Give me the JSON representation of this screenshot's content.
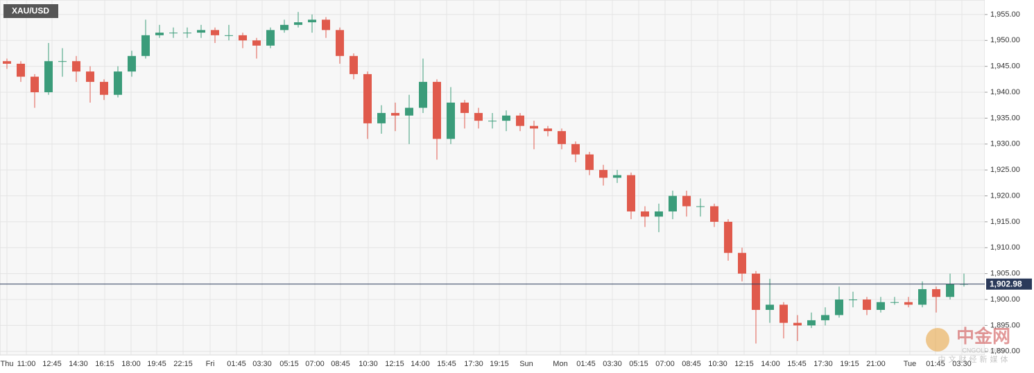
{
  "chart_data": {
    "type": "candlestick",
    "title": "XAU/USD",
    "x": [
      0.5,
      1.5,
      2.5,
      3.5,
      4.5,
      5.5,
      6.5,
      7.5,
      8.5,
      9.5,
      10.5,
      11.5,
      12.5,
      13.5,
      14.5,
      15.5,
      16.5,
      17.5,
      18.5,
      19.5,
      20.5,
      21.5,
      22.5,
      23.5,
      24.5,
      25.5,
      26.5,
      27.5,
      28.5,
      29.5,
      30.5,
      31.5,
      32.5,
      33.5,
      34.5,
      35.5,
      36.5,
      37.5,
      38.5,
      39.5,
      40.5,
      41.5,
      42.5,
      43.5,
      44.5,
      45.5,
      46.5,
      47.5,
      48.5,
      49.5,
      50.5,
      51.5,
      52.5,
      53.5,
      54.5,
      55.5,
      56.5,
      57.5,
      58.5,
      59.5,
      60.5,
      61.5,
      62.5,
      63.5,
      64.5,
      65.5,
      66.5,
      67.5,
      68.5,
      69.5
    ],
    "open": [
      1946,
      1945.5,
      1943,
      1940,
      1946,
      1946,
      1944,
      1942,
      1939.5,
      1944,
      1947,
      1951,
      1951.5,
      1951.5,
      1951.5,
      1952,
      1951,
      1951,
      1950,
      1949,
      1952,
      1953,
      1953.5,
      1954,
      1952,
      1947,
      1943.5,
      1934,
      1936,
      1935.5,
      1937,
      1942,
      1931,
      1938,
      1936,
      1934.5,
      1934.5,
      1935.5,
      1933.5,
      1933,
      1932.5,
      1930,
      1928,
      1925,
      1923.5,
      1924,
      1917,
      1916,
      1917,
      1920,
      1918,
      1918,
      1915,
      1909,
      1905,
      1898,
      1899,
      1895.5,
      1895,
      1896,
      1897,
      1900,
      1900,
      1898,
      1899.5,
      1899.5,
      1899,
      1902,
      1900.5,
      1903
    ],
    "high": [
      1946.5,
      1946,
      1943.5,
      1949.5,
      1948.5,
      1947,
      1945,
      1942.5,
      1945,
      1948,
      1954,
      1953,
      1952.5,
      1952.5,
      1953,
      1952.5,
      1953,
      1951.5,
      1950.5,
      1952.5,
      1954,
      1955.5,
      1955,
      1954.5,
      1952.5,
      1947.5,
      1944,
      1937.5,
      1938,
      1939.5,
      1946.5,
      1942.5,
      1941,
      1938.5,
      1937,
      1936,
      1936.5,
      1936,
      1934.5,
      1933.5,
      1933,
      1930.5,
      1928.5,
      1926,
      1925,
      1924.5,
      1918,
      1918.5,
      1921,
      1921,
      1919.5,
      1918.5,
      1915.5,
      1910,
      1905.5,
      1904,
      1899.5,
      1897,
      1897.5,
      1898.5,
      1902.5,
      1901.5,
      1900.5,
      1900.5,
      1900.5,
      1900.5,
      1903.5,
      1902.5,
      1905,
      1905
    ],
    "low": [
      1944.5,
      1942,
      1937,
      1939.5,
      1943,
      1942,
      1938,
      1938.5,
      1939,
      1943,
      1946.5,
      1950.5,
      1950.5,
      1950.5,
      1950.5,
      1949.5,
      1950,
      1948.5,
      1946.5,
      1948.5,
      1951.5,
      1952.5,
      1951.5,
      1950.5,
      1945.5,
      1942.5,
      1931,
      1932,
      1932.5,
      1930,
      1936,
      1927,
      1930,
      1933,
      1933,
      1933,
      1932.5,
      1932.5,
      1929,
      1931.5,
      1929,
      1926.5,
      1924,
      1922,
      1922.5,
      1915.5,
      1914,
      1913,
      1915.5,
      1916,
      1916,
      1914,
      1907.5,
      1903.5,
      1891.5,
      1895.5,
      1892.5,
      1892,
      1894.5,
      1895,
      1896.5,
      1898.5,
      1897,
      1897.5,
      1899,
      1898.5,
      1898.5,
      1897.5,
      1900,
      1902.5
    ],
    "close": [
      1945.5,
      1943,
      1940,
      1946,
      1946,
      1944,
      1942,
      1939.5,
      1944,
      1947,
      1951,
      1951.5,
      1951.5,
      1951.5,
      1952,
      1951,
      1951,
      1950,
      1949,
      1952,
      1953,
      1953.5,
      1954,
      1952,
      1947,
      1943.5,
      1934,
      1936,
      1935.5,
      1937,
      1942,
      1931,
      1938,
      1936,
      1934.5,
      1934.5,
      1935.5,
      1933.5,
      1933,
      1932.5,
      1930,
      1928,
      1925,
      1923.5,
      1924,
      1917,
      1916,
      1917,
      1920,
      1918,
      1918,
      1915,
      1909,
      1905,
      1898,
      1899,
      1895.5,
      1895,
      1896,
      1897,
      1900,
      1900,
      1898,
      1899.5,
      1899.5,
      1899,
      1902,
      1900.5,
      1903,
      1903
    ],
    "up_color": "#3b9c7a",
    "down_color": "#e05a4c",
    "current_price": {
      "value": 1902.98,
      "label": "1,902.98"
    },
    "xlim": [
      0,
      71
    ],
    "xticks": [
      {
        "value": 0.5,
        "label": "Thu"
      },
      {
        "value": 1.9,
        "label": "11:00"
      },
      {
        "value": 3.75,
        "label": "12:45"
      },
      {
        "value": 5.65,
        "label": "14:30"
      },
      {
        "value": 7.55,
        "label": "16:15"
      },
      {
        "value": 9.45,
        "label": "18:00"
      },
      {
        "value": 11.3,
        "label": "19:45"
      },
      {
        "value": 13.2,
        "label": "22:15"
      },
      {
        "value": 15.15,
        "label": "Fri"
      },
      {
        "value": 17.05,
        "label": "01:45"
      },
      {
        "value": 18.9,
        "label": "03:30"
      },
      {
        "value": 20.85,
        "label": "05:15"
      },
      {
        "value": 22.7,
        "label": "07:00"
      },
      {
        "value": 24.55,
        "label": "08:45"
      },
      {
        "value": 26.55,
        "label": "10:30"
      },
      {
        "value": 28.45,
        "label": "12:15"
      },
      {
        "value": 30.3,
        "label": "14:00"
      },
      {
        "value": 32.2,
        "label": "15:45"
      },
      {
        "value": 34.15,
        "label": "17:30"
      },
      {
        "value": 36,
        "label": "19:15"
      },
      {
        "value": 37.95,
        "label": "Sun"
      },
      {
        "value": 40.4,
        "label": "Mon"
      },
      {
        "value": 42.25,
        "label": "01:45"
      },
      {
        "value": 44.15,
        "label": "03:30"
      },
      {
        "value": 46.05,
        "label": "05:15"
      },
      {
        "value": 47.95,
        "label": "07:00"
      },
      {
        "value": 49.85,
        "label": "08:45"
      },
      {
        "value": 51.75,
        "label": "10:30"
      },
      {
        "value": 53.65,
        "label": "12:15"
      },
      {
        "value": 55.55,
        "label": "14:00"
      },
      {
        "value": 57.45,
        "label": "15:45"
      },
      {
        "value": 59.35,
        "label": "17:30"
      },
      {
        "value": 61.25,
        "label": "19:15"
      },
      {
        "value": 63.15,
        "label": "21:00"
      },
      {
        "value": 65.6,
        "label": "Tue"
      },
      {
        "value": 67.45,
        "label": "01:45"
      },
      {
        "value": 69.35,
        "label": "03:30"
      }
    ],
    "ylim": [
      1889.3,
      1957.8
    ],
    "yticks": [
      {
        "value": 1890,
        "label": "1,890.00"
      },
      {
        "value": 1895,
        "label": "1,895.00"
      },
      {
        "value": 1900,
        "label": "1,900.00"
      },
      {
        "value": 1905,
        "label": "1,905.00"
      },
      {
        "value": 1910,
        "label": "1,910.00"
      },
      {
        "value": 1915,
        "label": "1,915.00"
      },
      {
        "value": 1920,
        "label": "1,920.00"
      },
      {
        "value": 1925,
        "label": "1,925.00"
      },
      {
        "value": 1930,
        "label": "1,930.00"
      },
      {
        "value": 1935,
        "label": "1,935.00"
      },
      {
        "value": 1940,
        "label": "1,940.00"
      },
      {
        "value": 1945,
        "label": "1,945.00"
      },
      {
        "value": 1950,
        "label": "1,950.00"
      },
      {
        "value": 1955,
        "label": "1,955.00"
      }
    ],
    "grid": true,
    "watermark": {
      "name": "中金网",
      "site": "CNGOLD.ORG",
      "slogan": "中文财经新媒体"
    }
  }
}
